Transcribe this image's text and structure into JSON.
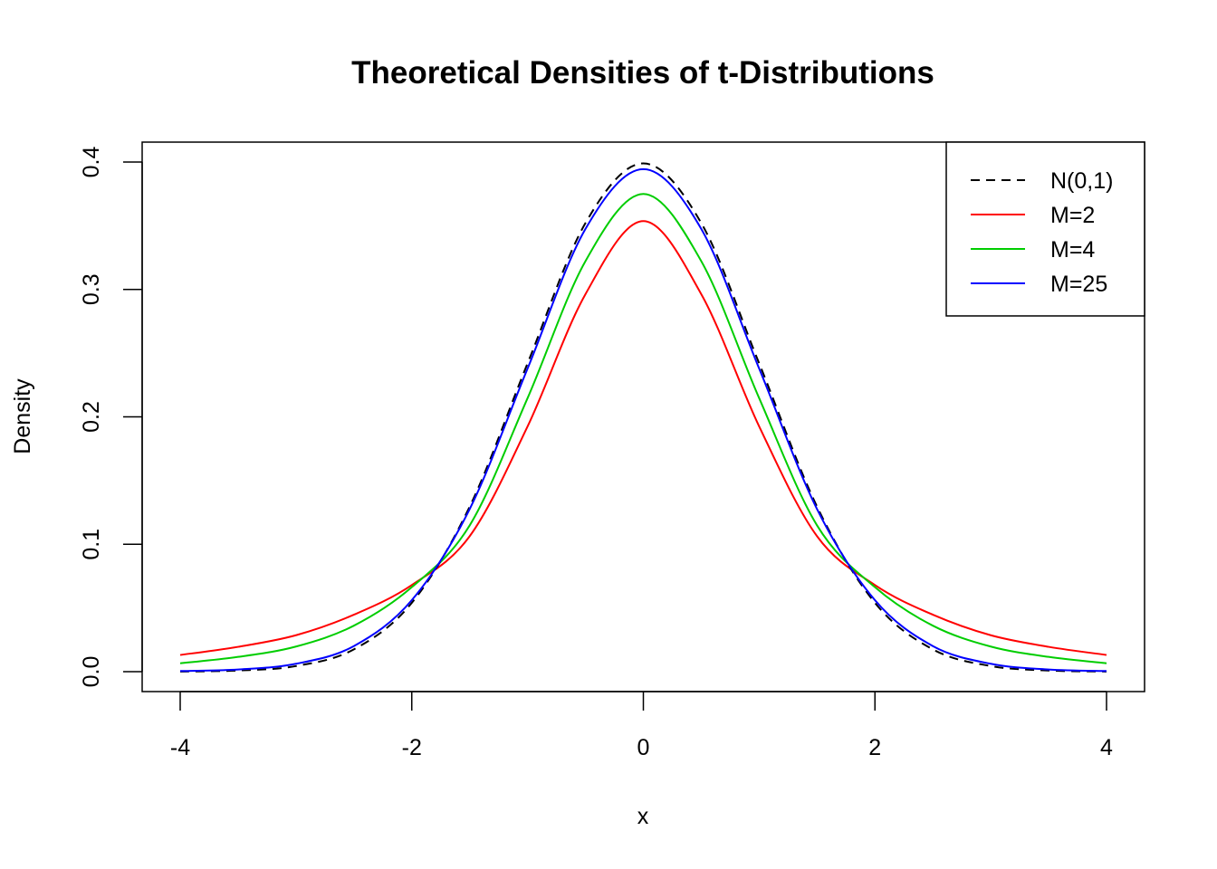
{
  "chart_data": {
    "type": "line",
    "title": "Theoretical Densities of t-Distributions",
    "xlabel": "x",
    "ylabel": "Density",
    "xlim": [
      -4,
      4
    ],
    "ylim": [
      0,
      0.4
    ],
    "x_ticks": [
      "-4",
      "-2",
      "0",
      "2",
      "4"
    ],
    "y_ticks": [
      "0.0",
      "0.1",
      "0.2",
      "0.3",
      "0.4"
    ],
    "grid": false,
    "legend_position": "top-right",
    "x": [
      -4,
      -3.5,
      -3,
      -2.5,
      -2,
      -1.5,
      -1,
      -0.5,
      0,
      0.5,
      1,
      1.5,
      2,
      2.5,
      3,
      3.5,
      4
    ],
    "series": [
      {
        "name": "N(0,1)",
        "color": "#000000",
        "dash": "dashed",
        "values": [
          0.0001,
          0.0009,
          0.0044,
          0.0175,
          0.054,
          0.1295,
          0.242,
          0.3521,
          0.3989,
          0.3521,
          0.242,
          0.1295,
          0.054,
          0.0175,
          0.0044,
          0.0009,
          0.0001
        ]
      },
      {
        "name": "M=2",
        "color": "#ff0000",
        "dash": "solid",
        "values": [
          0.0131,
          0.0195,
          0.0286,
          0.0447,
          0.068,
          0.1063,
          0.1925,
          0.2963,
          0.3536,
          0.2963,
          0.1925,
          0.1063,
          0.068,
          0.0447,
          0.0286,
          0.0195,
          0.0131
        ]
      },
      {
        "name": "M=4",
        "color": "#00cd00",
        "dash": "solid",
        "values": [
          0.0066,
          0.0116,
          0.0197,
          0.0361,
          0.0663,
          0.1148,
          0.2147,
          0.3222,
          0.375,
          0.3222,
          0.2147,
          0.1148,
          0.0663,
          0.0361,
          0.0197,
          0.0116,
          0.0066
        ]
      },
      {
        "name": "M=25",
        "color": "#0000ff",
        "dash": "solid",
        "values": [
          0.0005,
          0.0017,
          0.0062,
          0.0201,
          0.0561,
          0.1276,
          0.2379,
          0.3475,
          0.3944,
          0.3475,
          0.2379,
          0.1276,
          0.0561,
          0.0201,
          0.0062,
          0.0017,
          0.0005
        ]
      }
    ]
  }
}
